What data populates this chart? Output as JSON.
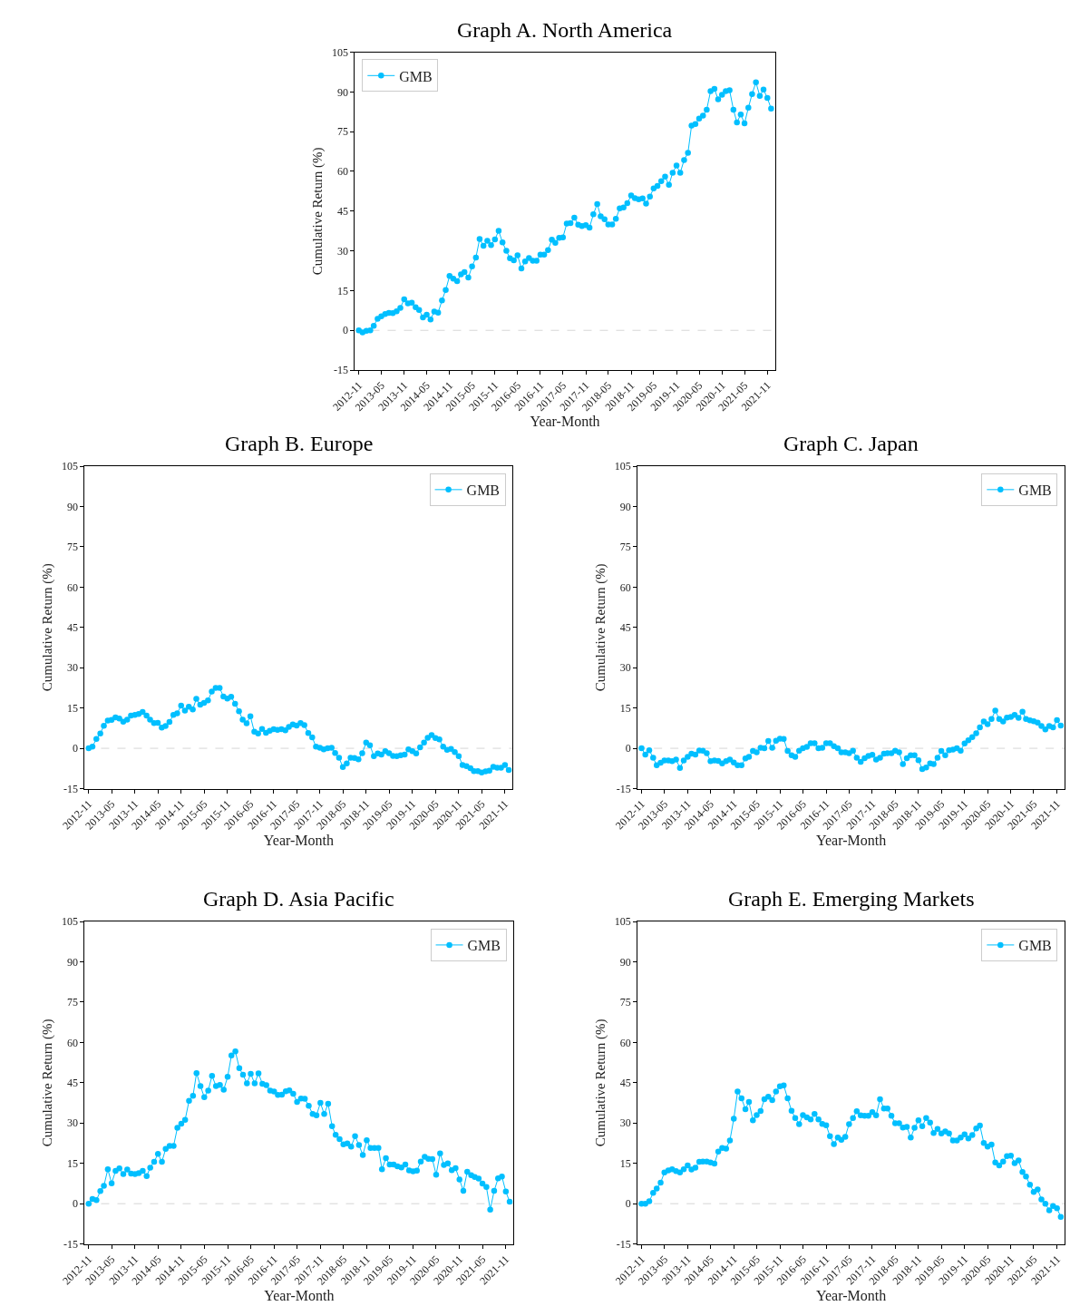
{
  "chart_data": [
    {
      "type": "line",
      "title": "Graph A. North America",
      "xlabel": "Year-Month",
      "ylabel": "Cumulative Return (%)",
      "x": [
        "2012-11",
        "2012-12",
        "2013-01",
        "2013-02",
        "2013-03",
        "2013-04",
        "2013-05",
        "2013-06",
        "2013-07",
        "2013-08",
        "2013-09",
        "2013-10",
        "2013-11",
        "2013-12",
        "2014-01",
        "2014-02",
        "2014-03",
        "2014-04",
        "2014-05",
        "2014-06",
        "2014-07",
        "2014-08",
        "2014-09",
        "2014-10",
        "2014-11",
        "2014-12",
        "2015-01",
        "2015-02",
        "2015-03",
        "2015-04",
        "2015-05",
        "2015-06",
        "2015-07",
        "2015-08",
        "2015-09",
        "2015-10",
        "2015-11",
        "2015-12",
        "2016-01",
        "2016-02",
        "2016-03",
        "2016-04",
        "2016-05",
        "2016-06",
        "2016-07",
        "2016-08",
        "2016-09",
        "2016-10",
        "2016-11",
        "2016-12",
        "2017-01",
        "2017-02",
        "2017-03",
        "2017-04",
        "2017-05",
        "2017-06",
        "2017-07",
        "2017-08",
        "2017-09",
        "2017-10",
        "2017-11",
        "2017-12",
        "2018-01",
        "2018-02",
        "2018-03",
        "2018-04",
        "2018-05",
        "2018-06",
        "2018-07",
        "2018-08",
        "2018-09",
        "2018-10",
        "2018-11",
        "2018-12",
        "2019-01",
        "2019-02",
        "2019-03",
        "2019-04",
        "2019-05",
        "2019-06",
        "2019-07",
        "2019-08",
        "2019-09",
        "2019-10",
        "2019-11",
        "2019-12",
        "2020-01",
        "2020-02",
        "2020-03",
        "2020-04",
        "2020-05",
        "2020-06",
        "2020-07",
        "2020-08",
        "2020-09",
        "2020-10",
        "2020-11",
        "2020-12",
        "2021-01",
        "2021-02",
        "2021-03",
        "2021-04",
        "2021-05",
        "2021-06",
        "2021-07",
        "2021-08",
        "2021-09",
        "2021-10",
        "2021-11",
        "2021-12"
      ],
      "series": [
        {
          "name": "GMB",
          "color": "#00bfff",
          "values": [
            0,
            -0.8,
            -0.2,
            0,
            1.7,
            4.4,
            5.3,
            6.2,
            6.6,
            6.5,
            7.2,
            8.5,
            11.7,
            10.2,
            10.4,
            8.7,
            7.7,
            4.9,
            5.9,
            4.1,
            7.1,
            6.7,
            11.3,
            15.2,
            20.5,
            19.5,
            18.6,
            21.1,
            22,
            19.9,
            24.1,
            27.5,
            34.5,
            31.9,
            33.8,
            32.2,
            34.3,
            37.6,
            33.2,
            30,
            27.2,
            26.4,
            28.3,
            23.4,
            26,
            27.3,
            26.3,
            26.3,
            28.6,
            28.6,
            30.3,
            34.2,
            33,
            34.9,
            35.1,
            40.3,
            40.5,
            42.5,
            39.9,
            39.4,
            39.7,
            38.8,
            43.8,
            47.7,
            43,
            41.9,
            40,
            40,
            42.1,
            46,
            46.4,
            48,
            50.9,
            49.9,
            49.5,
            49.8,
            47.8,
            50.5,
            53.6,
            54.5,
            56.3,
            58,
            54.9,
            59.5,
            62.2,
            59.5,
            64.3,
            67,
            77.3,
            77.9,
            79.9,
            81,
            83.3,
            90.3,
            91.1,
            87.2,
            88.9,
            90.3,
            90.6,
            83.3,
            78.5,
            81.5,
            78.1,
            84,
            89.2,
            93.6,
            88.5,
            90.9,
            87.7,
            83.7
          ]
        }
      ],
      "xlim": [
        "2012-10-01",
        "2022-01-01"
      ],
      "xticks": [
        "2012-11",
        "2013-05",
        "2013-11",
        "2014-05",
        "2014-11",
        "2015-05",
        "2015-11",
        "2016-05",
        "2016-11",
        "2017-05",
        "2017-11",
        "2018-05",
        "2018-11",
        "2019-05",
        "2019-11",
        "2020-05",
        "2020-11",
        "2021-05",
        "2021-11"
      ],
      "ylim": [
        -15,
        105
      ],
      "yticks": [
        -15,
        0,
        15,
        30,
        45,
        60,
        75,
        90,
        105
      ],
      "ref_lines": [
        {
          "axis": "y",
          "value": 0,
          "color": "#cccccc",
          "line_style": "dashed"
        }
      ],
      "grid": false,
      "legend": "top left",
      "marker": "circle",
      "line_style": "solid"
    },
    {
      "type": "line",
      "title": "Graph B. Europe",
      "xlabel": "Year-Month",
      "ylabel": "Cumulative Return (%)",
      "x": [
        "2012-11",
        "2012-12",
        "2013-01",
        "2013-02",
        "2013-03",
        "2013-04",
        "2013-05",
        "2013-06",
        "2013-07",
        "2013-08",
        "2013-09",
        "2013-10",
        "2013-11",
        "2013-12",
        "2014-01",
        "2014-02",
        "2014-03",
        "2014-04",
        "2014-05",
        "2014-06",
        "2014-07",
        "2014-08",
        "2014-09",
        "2014-10",
        "2014-11",
        "2014-12",
        "2015-01",
        "2015-02",
        "2015-03",
        "2015-04",
        "2015-05",
        "2015-06",
        "2015-07",
        "2015-08",
        "2015-09",
        "2015-10",
        "2015-11",
        "2015-12",
        "2016-01",
        "2016-02",
        "2016-03",
        "2016-04",
        "2016-05",
        "2016-06",
        "2016-07",
        "2016-08",
        "2016-09",
        "2016-10",
        "2016-11",
        "2016-12",
        "2017-01",
        "2017-02",
        "2017-03",
        "2017-04",
        "2017-05",
        "2017-06",
        "2017-07",
        "2017-08",
        "2017-09",
        "2017-10",
        "2017-11",
        "2017-12",
        "2018-01",
        "2018-02",
        "2018-03",
        "2018-04",
        "2018-05",
        "2018-06",
        "2018-07",
        "2018-08",
        "2018-09",
        "2018-10",
        "2018-11",
        "2018-12",
        "2019-01",
        "2019-02",
        "2019-03",
        "2019-04",
        "2019-05",
        "2019-06",
        "2019-07",
        "2019-08",
        "2019-09",
        "2019-10",
        "2019-11",
        "2019-12",
        "2020-01",
        "2020-02",
        "2020-03",
        "2020-04",
        "2020-05",
        "2020-06",
        "2020-07",
        "2020-08",
        "2020-09",
        "2020-10",
        "2020-11",
        "2020-12",
        "2021-01",
        "2021-02",
        "2021-03",
        "2021-04",
        "2021-05",
        "2021-06",
        "2021-07",
        "2021-08",
        "2021-09",
        "2021-10",
        "2021-11",
        "2021-12"
      ],
      "series": [
        {
          "name": "GMB",
          "color": "#00bfff",
          "values": [
            0,
            0.6,
            3.5,
            5.5,
            8.4,
            10.3,
            10.6,
            11.5,
            11.1,
            9.9,
            10.7,
            12.2,
            12.4,
            12.8,
            13.5,
            12.2,
            10.7,
            9.4,
            9.5,
            7.7,
            8.3,
            9.8,
            12.4,
            13,
            15.9,
            14,
            15.5,
            14.5,
            18.4,
            16.2,
            16.9,
            17.8,
            21.1,
            22.5,
            22.5,
            19.3,
            18.5,
            19.2,
            16.6,
            13.8,
            10.7,
            9.3,
            11.9,
            6.2,
            5.5,
            7.2,
            5.8,
            6.5,
            7.1,
            6.9,
            7.1,
            6.7,
            8,
            8.9,
            8.5,
            9.4,
            8.6,
            5.7,
            4.1,
            0.6,
            0.2,
            -0.4,
            0,
            0.2,
            -1.7,
            -3.5,
            -7,
            -5.6,
            -3.5,
            -3.6,
            -4.1,
            -1.8,
            2.1,
            1.1,
            -2.9,
            -1.9,
            -2.3,
            -1.1,
            -1.8,
            -2.8,
            -2.9,
            -2.6,
            -2.3,
            -0.4,
            -1.1,
            -1.9,
            0.4,
            2.1,
            3.9,
            4.9,
            3.8,
            3.3,
            0.6,
            -0.6,
            -0.2,
            -1.4,
            -2.9,
            -6.2,
            -6.6,
            -7.4,
            -8.5,
            -8.5,
            -9,
            -8.6,
            -8.3,
            -6.9,
            -7.2,
            -7.2,
            -6.2,
            -8.1
          ]
        }
      ],
      "xlim": [
        "2012-10-01",
        "2022-01-01"
      ],
      "xticks": [
        "2012-11",
        "2013-05",
        "2013-11",
        "2014-05",
        "2014-11",
        "2015-05",
        "2015-11",
        "2016-05",
        "2016-11",
        "2017-05",
        "2017-11",
        "2018-05",
        "2018-11",
        "2019-05",
        "2019-11",
        "2020-05",
        "2020-11",
        "2021-05",
        "2021-11"
      ],
      "ylim": [
        -15,
        105
      ],
      "yticks": [
        -15,
        0,
        15,
        30,
        45,
        60,
        75,
        90,
        105
      ],
      "ref_lines": [
        {
          "axis": "y",
          "value": 0,
          "color": "#cccccc",
          "line_style": "dashed"
        }
      ],
      "grid": false,
      "legend": "top right",
      "marker": "circle",
      "line_style": "solid"
    },
    {
      "type": "line",
      "title": "Graph C. Japan",
      "xlabel": "Year-Month",
      "ylabel": "Cumulative Return (%)",
      "x": [
        "2012-11",
        "2012-12",
        "2013-01",
        "2013-02",
        "2013-03",
        "2013-04",
        "2013-05",
        "2013-06",
        "2013-07",
        "2013-08",
        "2013-09",
        "2013-10",
        "2013-11",
        "2013-12",
        "2014-01",
        "2014-02",
        "2014-03",
        "2014-04",
        "2014-05",
        "2014-06",
        "2014-07",
        "2014-08",
        "2014-09",
        "2014-10",
        "2014-11",
        "2014-12",
        "2015-01",
        "2015-02",
        "2015-03",
        "2015-04",
        "2015-05",
        "2015-06",
        "2015-07",
        "2015-08",
        "2015-09",
        "2015-10",
        "2015-11",
        "2015-12",
        "2016-01",
        "2016-02",
        "2016-03",
        "2016-04",
        "2016-05",
        "2016-06",
        "2016-07",
        "2016-08",
        "2016-09",
        "2016-10",
        "2016-11",
        "2016-12",
        "2017-01",
        "2017-02",
        "2017-03",
        "2017-04",
        "2017-05",
        "2017-06",
        "2017-07",
        "2017-08",
        "2017-09",
        "2017-10",
        "2017-11",
        "2017-12",
        "2018-01",
        "2018-02",
        "2018-03",
        "2018-04",
        "2018-05",
        "2018-06",
        "2018-07",
        "2018-08",
        "2018-09",
        "2018-10",
        "2018-11",
        "2018-12",
        "2019-01",
        "2019-02",
        "2019-03",
        "2019-04",
        "2019-05",
        "2019-06",
        "2019-07",
        "2019-08",
        "2019-09",
        "2019-10",
        "2019-11",
        "2019-12",
        "2020-01",
        "2020-02",
        "2020-03",
        "2020-04",
        "2020-05",
        "2020-06",
        "2020-07",
        "2020-08",
        "2020-09",
        "2020-10",
        "2020-11",
        "2020-12",
        "2021-01",
        "2021-02",
        "2021-03",
        "2021-04",
        "2021-05",
        "2021-06",
        "2021-07",
        "2021-08",
        "2021-09",
        "2021-10",
        "2021-11",
        "2021-12"
      ],
      "series": [
        {
          "name": "GMB",
          "color": "#00bfff",
          "values": [
            0,
            -2.3,
            -0.7,
            -3.5,
            -6.3,
            -5.4,
            -4.5,
            -4.5,
            -4.8,
            -4.2,
            -7.3,
            -4.5,
            -3.2,
            -2,
            -2.3,
            -0.8,
            -0.9,
            -1.8,
            -4.8,
            -4.5,
            -4.7,
            -5.6,
            -4.8,
            -4.2,
            -5.3,
            -6.3,
            -6.3,
            -3.8,
            -3.2,
            -1,
            -1.5,
            0.2,
            0,
            2.7,
            0.2,
            2.8,
            3.6,
            3.5,
            -1,
            -2.6,
            -3.2,
            -0.9,
            0,
            0.5,
            1.9,
            1.9,
            0,
            0.2,
            1.9,
            1.9,
            0.8,
            0,
            -1.5,
            -1.5,
            -1.8,
            -0.9,
            -3.5,
            -5,
            -3.7,
            -2.8,
            -2.4,
            -4.2,
            -3.5,
            -2,
            -1.8,
            -1.8,
            -0.9,
            -1.5,
            -5.9,
            -3.7,
            -2.6,
            -2.6,
            -4.4,
            -7.7,
            -7.1,
            -5.6,
            -5.9,
            -3.5,
            -1,
            -2.6,
            -0.7,
            -0.5,
            0,
            -0.9,
            1.8,
            3,
            4.2,
            5.6,
            7.8,
            10,
            9,
            10.9,
            14,
            10.9,
            10,
            11.4,
            11.7,
            12.4,
            11.3,
            13.6,
            10.9,
            10.4,
            10.1,
            9.6,
            8.3,
            7,
            8.3,
            7.8,
            10.5,
            8.5
          ]
        }
      ],
      "xlim": [
        "2012-10-01",
        "2022-01-01"
      ],
      "xticks": [
        "2012-11",
        "2013-05",
        "2013-11",
        "2014-05",
        "2014-11",
        "2015-05",
        "2015-11",
        "2016-05",
        "2016-11",
        "2017-05",
        "2017-11",
        "2018-05",
        "2018-11",
        "2019-05",
        "2019-11",
        "2020-05",
        "2020-11",
        "2021-05",
        "2021-11"
      ],
      "ylim": [
        -15,
        105
      ],
      "yticks": [
        -15,
        0,
        15,
        30,
        45,
        60,
        75,
        90,
        105
      ],
      "ref_lines": [
        {
          "axis": "y",
          "value": 0,
          "color": "#cccccc",
          "line_style": "dashed"
        }
      ],
      "grid": false,
      "legend": "top right",
      "marker": "circle",
      "line_style": "solid"
    },
    {
      "type": "line",
      "title": "Graph D. Asia Pacific",
      "xlabel": "Year-Month",
      "ylabel": "Cumulative Return (%)",
      "x": [
        "2012-11",
        "2012-12",
        "2013-01",
        "2013-02",
        "2013-03",
        "2013-04",
        "2013-05",
        "2013-06",
        "2013-07",
        "2013-08",
        "2013-09",
        "2013-10",
        "2013-11",
        "2013-12",
        "2014-01",
        "2014-02",
        "2014-03",
        "2014-04",
        "2014-05",
        "2014-06",
        "2014-07",
        "2014-08",
        "2014-09",
        "2014-10",
        "2014-11",
        "2014-12",
        "2015-01",
        "2015-02",
        "2015-03",
        "2015-04",
        "2015-05",
        "2015-06",
        "2015-07",
        "2015-08",
        "2015-09",
        "2015-10",
        "2015-11",
        "2015-12",
        "2016-01",
        "2016-02",
        "2016-03",
        "2016-04",
        "2016-05",
        "2016-06",
        "2016-07",
        "2016-08",
        "2016-09",
        "2016-10",
        "2016-11",
        "2016-12",
        "2017-01",
        "2017-02",
        "2017-03",
        "2017-04",
        "2017-05",
        "2017-06",
        "2017-07",
        "2017-08",
        "2017-09",
        "2017-10",
        "2017-11",
        "2017-12",
        "2018-01",
        "2018-02",
        "2018-03",
        "2018-04",
        "2018-05",
        "2018-06",
        "2018-07",
        "2018-08",
        "2018-09",
        "2018-10",
        "2018-11",
        "2018-12",
        "2019-01",
        "2019-02",
        "2019-03",
        "2019-04",
        "2019-05",
        "2019-06",
        "2019-07",
        "2019-08",
        "2019-09",
        "2019-10",
        "2019-11",
        "2019-12",
        "2020-01",
        "2020-02",
        "2020-03",
        "2020-04",
        "2020-05",
        "2020-06",
        "2020-07",
        "2020-08",
        "2020-09",
        "2020-10",
        "2020-11",
        "2020-12",
        "2021-01",
        "2021-02",
        "2021-03",
        "2021-04",
        "2021-05",
        "2021-06",
        "2021-07",
        "2021-08",
        "2021-09",
        "2021-10",
        "2021-11",
        "2021-12"
      ],
      "series": [
        {
          "name": "GMB",
          "color": "#00bfff",
          "values": [
            0,
            1.7,
            1.3,
            4.7,
            6.6,
            12.8,
            7.6,
            12.2,
            13.1,
            11,
            12.7,
            11.2,
            11,
            11.4,
            12.2,
            10.3,
            13.4,
            15.6,
            18.5,
            15.6,
            20.4,
            21.5,
            21.5,
            28.2,
            29.8,
            31.2,
            38.3,
            40.1,
            48.6,
            43.8,
            39.6,
            42.1,
            47.6,
            43.8,
            44.2,
            42.4,
            47.2,
            55.2,
            56.7,
            50.4,
            48,
            44.8,
            48.3,
            44.8,
            48.5,
            44.6,
            44.1,
            42.1,
            41.7,
            40.5,
            40.6,
            41.8,
            42.2,
            40.9,
            37.9,
            39.1,
            39,
            36.4,
            33.4,
            32.9,
            37.5,
            33.4,
            37.2,
            28.8,
            25.6,
            24,
            22.1,
            22.4,
            21.2,
            25.1,
            21.8,
            18.1,
            23.6,
            20.7,
            20.7,
            20.7,
            12.8,
            16.9,
            14.6,
            14.6,
            13.9,
            13.5,
            14.6,
            12.4,
            12,
            12.3,
            15.7,
            17.4,
            16.7,
            16.6,
            10.8,
            18.7,
            14.4,
            15,
            12.5,
            13.2,
            9,
            4.8,
            11.9,
            10.6,
            9.9,
            9.3,
            7.5,
            6.2,
            -2.2,
            4.8,
            9.4,
            10.1,
            4.5,
            0.7
          ]
        }
      ],
      "xlim": [
        "2012-10-01",
        "2022-01-01"
      ],
      "xticks": [
        "2012-11",
        "2013-05",
        "2013-11",
        "2014-05",
        "2014-11",
        "2015-05",
        "2015-11",
        "2016-05",
        "2016-11",
        "2017-05",
        "2017-11",
        "2018-05",
        "2018-11",
        "2019-05",
        "2019-11",
        "2020-05",
        "2020-11",
        "2021-05",
        "2021-11"
      ],
      "ylim": [
        -15,
        105
      ],
      "yticks": [
        -15,
        0,
        15,
        30,
        45,
        60,
        75,
        90,
        105
      ],
      "ref_lines": [
        {
          "axis": "y",
          "value": 0,
          "color": "#cccccc",
          "line_style": "dashed"
        }
      ],
      "grid": false,
      "legend": "top right",
      "marker": "circle",
      "line_style": "solid"
    },
    {
      "type": "line",
      "title": "Graph E. Emerging Markets",
      "xlabel": "Year-Month",
      "ylabel": "Cumulative Return (%)",
      "x": [
        "2012-11",
        "2012-12",
        "2013-01",
        "2013-02",
        "2013-03",
        "2013-04",
        "2013-05",
        "2013-06",
        "2013-07",
        "2013-08",
        "2013-09",
        "2013-10",
        "2013-11",
        "2013-12",
        "2014-01",
        "2014-02",
        "2014-03",
        "2014-04",
        "2014-05",
        "2014-06",
        "2014-07",
        "2014-08",
        "2014-09",
        "2014-10",
        "2014-11",
        "2014-12",
        "2015-01",
        "2015-02",
        "2015-03",
        "2015-04",
        "2015-05",
        "2015-06",
        "2015-07",
        "2015-08",
        "2015-09",
        "2015-10",
        "2015-11",
        "2015-12",
        "2016-01",
        "2016-02",
        "2016-03",
        "2016-04",
        "2016-05",
        "2016-06",
        "2016-07",
        "2016-08",
        "2016-09",
        "2016-10",
        "2016-11",
        "2016-12",
        "2017-01",
        "2017-02",
        "2017-03",
        "2017-04",
        "2017-05",
        "2017-06",
        "2017-07",
        "2017-08",
        "2017-09",
        "2017-10",
        "2017-11",
        "2017-12",
        "2018-01",
        "2018-02",
        "2018-03",
        "2018-04",
        "2018-05",
        "2018-06",
        "2018-07",
        "2018-08",
        "2018-09",
        "2018-10",
        "2018-11",
        "2018-12",
        "2019-01",
        "2019-02",
        "2019-03",
        "2019-04",
        "2019-05",
        "2019-06",
        "2019-07",
        "2019-08",
        "2019-09",
        "2019-10",
        "2019-11",
        "2019-12",
        "2020-01",
        "2020-02",
        "2020-03",
        "2020-04",
        "2020-05",
        "2020-06",
        "2020-07",
        "2020-08",
        "2020-09",
        "2020-10",
        "2020-11",
        "2020-12",
        "2021-01",
        "2021-02",
        "2021-03",
        "2021-04",
        "2021-05",
        "2021-06",
        "2021-07",
        "2021-08",
        "2021-09",
        "2021-10",
        "2021-11",
        "2021-12"
      ],
      "series": [
        {
          "name": "GMB",
          "color": "#00bfff",
          "values": [
            0,
            0,
            0.9,
            4,
            5.6,
            7.8,
            11.6,
            12.4,
            12.8,
            12.1,
            11.6,
            12.8,
            14.2,
            12.7,
            13.4,
            15.6,
            15.7,
            15.7,
            15.3,
            14.9,
            19.4,
            20.7,
            20.5,
            23.5,
            31.6,
            41.7,
            39.2,
            35.2,
            37.9,
            31,
            33,
            34.5,
            38.9,
            39.8,
            38.5,
            41.7,
            43.7,
            44,
            39.2,
            34.6,
            31.9,
            29.6,
            33,
            32.1,
            31.4,
            33.4,
            31.4,
            29.7,
            29.2,
            25.1,
            22.2,
            24.6,
            23.8,
            24.9,
            29.6,
            31.9,
            34.4,
            32.9,
            32.7,
            32.7,
            34.1,
            32.9,
            38.9,
            35.4,
            35.4,
            32.7,
            29.9,
            29.9,
            28.3,
            28.6,
            24.6,
            28.2,
            31,
            28.8,
            31.9,
            30.2,
            26.3,
            27.8,
            26.1,
            26.9,
            26.1,
            23.5,
            23.5,
            24.6,
            25.8,
            24.3,
            25.5,
            28,
            29.1,
            22.6,
            21.2,
            22,
            15.3,
            14.2,
            15.7,
            17.7,
            17.9,
            15.1,
            16.1,
            11.8,
            10.1,
            7.1,
            4.4,
            5.3,
            1.6,
            0,
            -2.5,
            -0.9,
            -1.7,
            -4.9
          ]
        }
      ],
      "xlim": [
        "2012-10-01",
        "2022-01-01"
      ],
      "xticks": [
        "2012-11",
        "2013-05",
        "2013-11",
        "2014-05",
        "2014-11",
        "2015-05",
        "2015-11",
        "2016-05",
        "2016-11",
        "2017-05",
        "2017-11",
        "2018-05",
        "2018-11",
        "2019-05",
        "2019-11",
        "2020-05",
        "2020-11",
        "2021-05",
        "2021-11"
      ],
      "ylim": [
        -15,
        105
      ],
      "yticks": [
        -15,
        0,
        15,
        30,
        45,
        60,
        75,
        90,
        105
      ],
      "ref_lines": [
        {
          "axis": "y",
          "value": 0,
          "color": "#cccccc",
          "line_style": "dashed"
        }
      ],
      "grid": false,
      "legend": "top right",
      "marker": "circle",
      "line_style": "solid"
    }
  ]
}
